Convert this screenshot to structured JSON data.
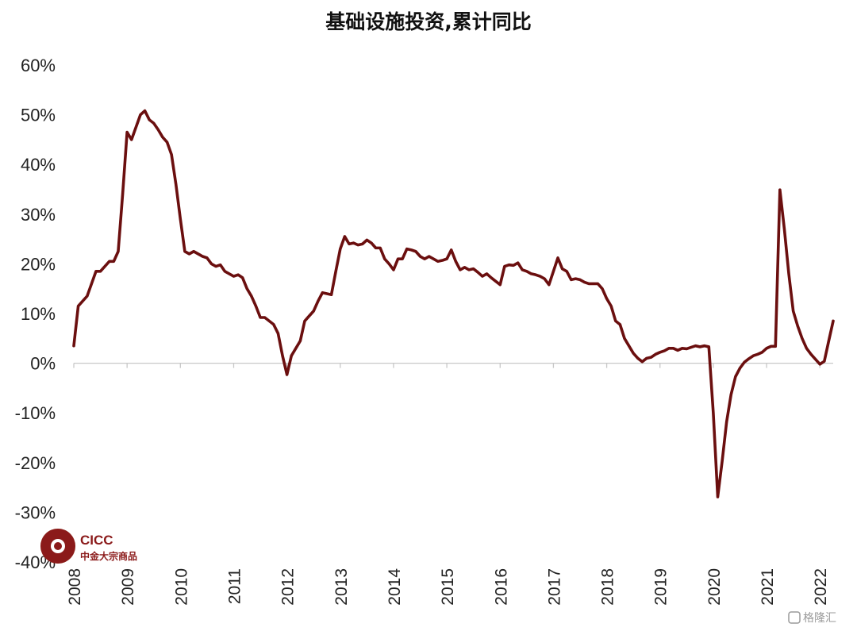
{
  "chart_data": {
    "type": "line",
    "title": "基础设施投资,累计同比",
    "xlabel": "",
    "ylabel": "",
    "ylim": [
      -40,
      60
    ],
    "y_ticks": [
      "60%",
      "50%",
      "40%",
      "30%",
      "20%",
      "10%",
      "0%",
      "-10%",
      "-20%",
      "-30%",
      "-40%"
    ],
    "x_ticks": [
      "2008",
      "2009",
      "2010",
      "2011",
      "2012",
      "2013",
      "2014",
      "2015",
      "2016",
      "2017",
      "2018",
      "2019",
      "2020",
      "2021",
      "2022"
    ],
    "grid": false,
    "legend": "none",
    "series": [
      {
        "color": "#6b0f0f",
        "points": [
          [
            "2008-01",
            3.5
          ],
          [
            "2008-02",
            11.5
          ],
          [
            "2008-03",
            12.5
          ],
          [
            "2008-04",
            13.5
          ],
          [
            "2008-05",
            16
          ],
          [
            "2008-06",
            18.5
          ],
          [
            "2008-07",
            18.5
          ],
          [
            "2008-08",
            19.5
          ],
          [
            "2008-09",
            20.5
          ],
          [
            "2008-10",
            20.5
          ],
          [
            "2008-11",
            22.5
          ],
          [
            "2008-12",
            34
          ],
          [
            "2009-01",
            46.5
          ],
          [
            "2009-02",
            45
          ],
          [
            "2009-03",
            47.5
          ],
          [
            "2009-04",
            50
          ],
          [
            "2009-05",
            50.8
          ],
          [
            "2009-06",
            49
          ],
          [
            "2009-07",
            48.3
          ],
          [
            "2009-08",
            47
          ],
          [
            "2009-09",
            45.5
          ],
          [
            "2009-10",
            44.5
          ],
          [
            "2009-11",
            42
          ],
          [
            "2009-12",
            36
          ],
          [
            "2010-01",
            29
          ],
          [
            "2010-02",
            22.5
          ],
          [
            "2010-03",
            22
          ],
          [
            "2010-04",
            22.5
          ],
          [
            "2010-05",
            22
          ],
          [
            "2010-06",
            21.5
          ],
          [
            "2010-07",
            21.2
          ],
          [
            "2010-08",
            20
          ],
          [
            "2010-09",
            19.5
          ],
          [
            "2010-10",
            19.8
          ],
          [
            "2010-11",
            18.5
          ],
          [
            "2010-12",
            18
          ],
          [
            "2011-01",
            17.5
          ],
          [
            "2011-02",
            17.8
          ],
          [
            "2011-03",
            17.2
          ],
          [
            "2011-04",
            15
          ],
          [
            "2011-05",
            13.5
          ],
          [
            "2011-06",
            11.5
          ],
          [
            "2011-07",
            9.2
          ],
          [
            "2011-08",
            9.2
          ],
          [
            "2011-09",
            8.5
          ],
          [
            "2011-10",
            7.8
          ],
          [
            "2011-11",
            6
          ],
          [
            "2011-12",
            1.5
          ],
          [
            "2012-01",
            -2.3
          ],
          [
            "2012-02",
            1.5
          ],
          [
            "2012-03",
            3
          ],
          [
            "2012-04",
            4.5
          ],
          [
            "2012-05",
            8.5
          ],
          [
            "2012-06",
            9.5
          ],
          [
            "2012-07",
            10.5
          ],
          [
            "2012-08",
            12.5
          ],
          [
            "2012-09",
            14.2
          ],
          [
            "2012-10",
            14
          ],
          [
            "2012-11",
            13.8
          ],
          [
            "2012-12",
            18.5
          ],
          [
            "2013-01",
            23
          ],
          [
            "2013-02",
            25.5
          ],
          [
            "2013-03",
            24
          ],
          [
            "2013-04",
            24.2
          ],
          [
            "2013-05",
            23.8
          ],
          [
            "2013-06",
            24
          ],
          [
            "2013-07",
            24.8
          ],
          [
            "2013-08",
            24.2
          ],
          [
            "2013-09",
            23.2
          ],
          [
            "2013-10",
            23.2
          ],
          [
            "2013-11",
            21
          ],
          [
            "2013-12",
            20
          ],
          [
            "2014-01",
            18.8
          ],
          [
            "2014-02",
            21
          ],
          [
            "2014-03",
            21
          ],
          [
            "2014-04",
            23
          ],
          [
            "2014-05",
            22.8
          ],
          [
            "2014-06",
            22.5
          ],
          [
            "2014-07",
            21.5
          ],
          [
            "2014-08",
            21
          ],
          [
            "2014-09",
            21.5
          ],
          [
            "2014-10",
            21
          ],
          [
            "2014-11",
            20.5
          ],
          [
            "2014-12",
            20.7
          ],
          [
            "2015-01",
            21
          ],
          [
            "2015-02",
            22.8
          ],
          [
            "2015-03",
            20.5
          ],
          [
            "2015-04",
            18.8
          ],
          [
            "2015-05",
            19.3
          ],
          [
            "2015-06",
            18.8
          ],
          [
            "2015-07",
            19
          ],
          [
            "2015-08",
            18.3
          ],
          [
            "2015-09",
            17.5
          ],
          [
            "2015-10",
            18
          ],
          [
            "2015-11",
            17.2
          ],
          [
            "2015-12",
            16.5
          ],
          [
            "2016-01",
            15.8
          ],
          [
            "2016-02",
            19.5
          ],
          [
            "2016-03",
            19.8
          ],
          [
            "2016-04",
            19.7
          ],
          [
            "2016-05",
            20.2
          ],
          [
            "2016-06",
            18.8
          ],
          [
            "2016-07",
            18.5
          ],
          [
            "2016-08",
            18
          ],
          [
            "2016-09",
            17.8
          ],
          [
            "2016-10",
            17.5
          ],
          [
            "2016-11",
            17
          ],
          [
            "2016-12",
            15.8
          ],
          [
            "2017-01",
            18.5
          ],
          [
            "2017-02",
            21.2
          ],
          [
            "2017-03",
            19
          ],
          [
            "2017-04",
            18.5
          ],
          [
            "2017-05",
            16.8
          ],
          [
            "2017-06",
            17
          ],
          [
            "2017-07",
            16.8
          ],
          [
            "2017-08",
            16.3
          ],
          [
            "2017-09",
            16
          ],
          [
            "2017-10",
            16
          ],
          [
            "2017-11",
            16
          ],
          [
            "2017-12",
            15
          ],
          [
            "2018-01",
            13
          ],
          [
            "2018-02",
            11.5
          ],
          [
            "2018-03",
            8.5
          ],
          [
            "2018-04",
            7.8
          ],
          [
            "2018-05",
            5
          ],
          [
            "2018-06",
            3.5
          ],
          [
            "2018-07",
            2
          ],
          [
            "2018-08",
            1
          ],
          [
            "2018-09",
            0.3
          ],
          [
            "2018-10",
            1
          ],
          [
            "2018-11",
            1.2
          ],
          [
            "2018-12",
            1.8
          ],
          [
            "2019-01",
            2.2
          ],
          [
            "2019-02",
            2.5
          ],
          [
            "2019-03",
            3
          ],
          [
            "2019-04",
            3
          ],
          [
            "2019-05",
            2.6
          ],
          [
            "2019-06",
            3
          ],
          [
            "2019-07",
            2.9
          ],
          [
            "2019-08",
            3.2
          ],
          [
            "2019-09",
            3.5
          ],
          [
            "2019-10",
            3.3
          ],
          [
            "2019-11",
            3.5
          ],
          [
            "2019-12",
            3.3
          ],
          [
            "2020-01",
            -10
          ],
          [
            "2020-02",
            -26.9
          ],
          [
            "2020-03",
            -19.7
          ],
          [
            "2020-04",
            -11.8
          ],
          [
            "2020-05",
            -6.3
          ],
          [
            "2020-06",
            -2.7
          ],
          [
            "2020-07",
            -1
          ],
          [
            "2020-08",
            0.2
          ],
          [
            "2020-09",
            0.9
          ],
          [
            "2020-10",
            1.5
          ],
          [
            "2020-11",
            1.8
          ],
          [
            "2020-12",
            2.2
          ],
          [
            "2021-01",
            3
          ],
          [
            "2021-02",
            3.4
          ],
          [
            "2021-03",
            3.4
          ],
          [
            "2021-04",
            34.9
          ],
          [
            "2021-05",
            27
          ],
          [
            "2021-06",
            18
          ],
          [
            "2021-07",
            10.5
          ],
          [
            "2021-08",
            7.5
          ],
          [
            "2021-09",
            5
          ],
          [
            "2021-10",
            3
          ],
          [
            "2021-11",
            1.8
          ],
          [
            "2021-12",
            0.8
          ],
          [
            "2022-01",
            -0.2
          ],
          [
            "2022-02",
            0.4
          ],
          [
            "2022-03",
            4.5
          ],
          [
            "2022-04",
            8.5
          ]
        ]
      }
    ]
  },
  "logo": {
    "name": "CICC",
    "subtitle": "中金大宗商品"
  },
  "watermark": {
    "text": "格隆汇"
  }
}
